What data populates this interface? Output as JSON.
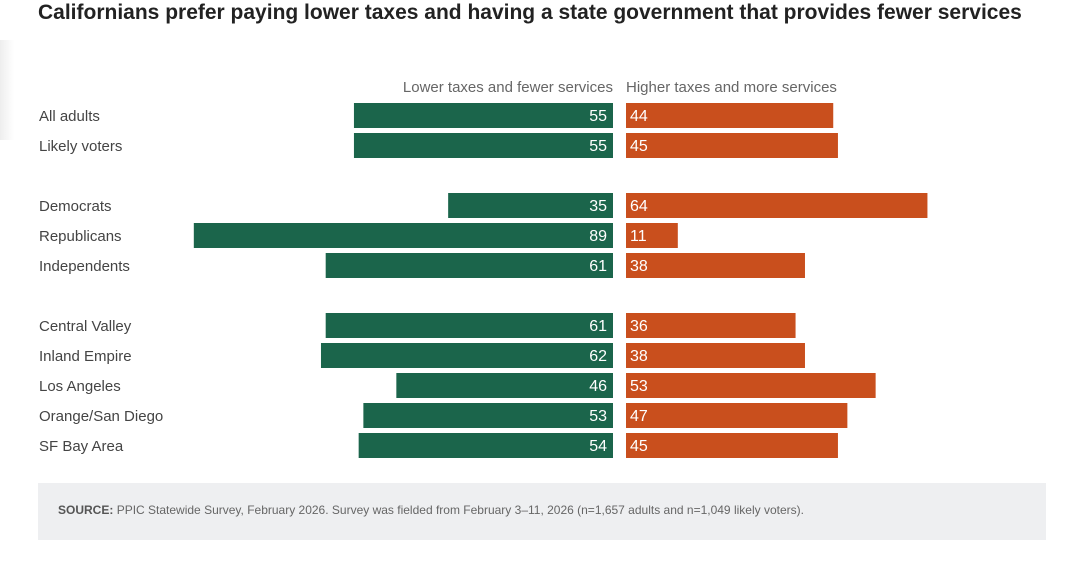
{
  "title": "Californians prefer paying lower taxes and having a state government that provides fewer services",
  "source": {
    "label": "SOURCE:",
    "text": "PPIC Statewide Survey, February 2026. Survey was fielded from February 3–11, 2026 (n=1,657 adults and n=1,049 likely voters)."
  },
  "chart_data": {
    "type": "bar",
    "orientation": "diverging-horizontal",
    "title": "Californians prefer paying lower taxes and having a state government that provides fewer services",
    "categories": [
      "All adults",
      "Likely voters",
      "Democrats",
      "Republicans",
      "Independents",
      "Central Valley",
      "Inland Empire",
      "Los Angeles",
      "Orange/San Diego",
      "SF Bay Area"
    ],
    "groups": [
      [
        0,
        1
      ],
      [
        2,
        3,
        4
      ],
      [
        5,
        6,
        7,
        8,
        9
      ]
    ],
    "series": [
      {
        "name": "Lower taxes and fewer services",
        "color": "#1b654b",
        "values": [
          55,
          55,
          35,
          89,
          61,
          61,
          62,
          46,
          53,
          54
        ]
      },
      {
        "name": "Higher taxes and more services",
        "color": "#c94f1d",
        "values": [
          44,
          45,
          64,
          11,
          38,
          36,
          38,
          53,
          47,
          45
        ]
      }
    ],
    "xlim": [
      0,
      100
    ],
    "unit": "%",
    "grid": false,
    "legend": "top-center"
  }
}
